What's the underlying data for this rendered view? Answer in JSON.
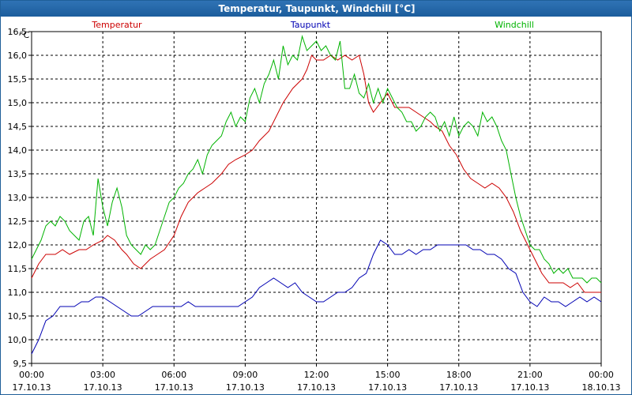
{
  "window": {
    "title": "Temperatur, Taupunkt, Windchill [°C]"
  },
  "chart_data": {
    "type": "line",
    "title": "Temperatur, Taupunkt, Windchill [°C]",
    "ylabel": "°C",
    "ylim": [
      9.5,
      16.5
    ],
    "yticks": [
      "9,5",
      "10,0",
      "10,5",
      "11,0",
      "11,5",
      "12,0",
      "12,5",
      "13,0",
      "13,5",
      "14,0",
      "14,5",
      "15,0",
      "15,5",
      "16,0",
      "16,5"
    ],
    "xlim": [
      0,
      24
    ],
    "xticks": [
      {
        "time": "00:00",
        "date": "17.10.13"
      },
      {
        "time": "03:00",
        "date": "17.10.13"
      },
      {
        "time": "06:00",
        "date": "17.10.13"
      },
      {
        "time": "09:00",
        "date": "17.10.13"
      },
      {
        "time": "12:00",
        "date": "17.10.13"
      },
      {
        "time": "15:00",
        "date": "17.10.13"
      },
      {
        "time": "18:00",
        "date": "17.10.13"
      },
      {
        "time": "21:00",
        "date": "17.10.13"
      },
      {
        "time": "00:00",
        "date": "18.10.13"
      }
    ],
    "grid": true,
    "series": [
      {
        "name": "Temperatur",
        "color": "#cc0000",
        "x": [
          0,
          0.3,
          0.6,
          0.8,
          1,
          1.3,
          1.6,
          2,
          2.3,
          2.6,
          3,
          3.2,
          3.5,
          3.8,
          4,
          4.3,
          4.6,
          5,
          5.3,
          5.6,
          6,
          6.3,
          6.6,
          7,
          7.3,
          7.6,
          8,
          8.3,
          8.6,
          9,
          9.3,
          9.6,
          10,
          10.3,
          10.6,
          11,
          11.2,
          11.4,
          11.6,
          11.8,
          12,
          12.3,
          12.6,
          12.9,
          13.2,
          13.5,
          13.8,
          14,
          14.2,
          14.4,
          14.7,
          15,
          15.3,
          15.6,
          15.9,
          16.2,
          16.5,
          16.8,
          17,
          17.3,
          17.6,
          17.9,
          18.2,
          18.5,
          18.8,
          19.1,
          19.4,
          19.7,
          20,
          20.3,
          20.6,
          20.9,
          21.2,
          21.5,
          21.8,
          22.1,
          22.4,
          22.7,
          23,
          23.3,
          23.6,
          24
        ],
        "values": [
          11.3,
          11.6,
          11.8,
          11.8,
          11.8,
          11.9,
          11.8,
          11.9,
          11.9,
          12.0,
          12.1,
          12.2,
          12.1,
          11.9,
          11.8,
          11.6,
          11.5,
          11.7,
          11.8,
          11.9,
          12.2,
          12.6,
          12.9,
          13.1,
          13.2,
          13.3,
          13.5,
          13.7,
          13.8,
          13.9,
          14.0,
          14.2,
          14.4,
          14.7,
          15.0,
          15.3,
          15.4,
          15.5,
          15.7,
          16.0,
          15.9,
          15.9,
          16.0,
          15.9,
          16.0,
          15.9,
          16.0,
          15.6,
          15.0,
          14.8,
          15.0,
          15.2,
          14.9,
          14.9,
          14.9,
          14.8,
          14.7,
          14.6,
          14.5,
          14.4,
          14.1,
          13.9,
          13.6,
          13.4,
          13.3,
          13.2,
          13.3,
          13.2,
          13.0,
          12.7,
          12.3,
          12.0,
          11.7,
          11.4,
          11.2,
          11.2,
          11.2,
          11.1,
          11.2,
          11.0,
          11.0,
          11.0
        ]
      },
      {
        "name": "Taupunkt",
        "color": "#0000b3",
        "x": [
          0,
          0.3,
          0.6,
          0.9,
          1.2,
          1.5,
          1.8,
          2.1,
          2.4,
          2.7,
          3,
          3.3,
          3.6,
          3.9,
          4.2,
          4.5,
          4.8,
          5.1,
          5.4,
          5.7,
          6,
          6.3,
          6.6,
          6.9,
          7.2,
          7.5,
          7.8,
          8.1,
          8.4,
          8.7,
          9,
          9.3,
          9.6,
          9.9,
          10.2,
          10.5,
          10.8,
          11.1,
          11.4,
          11.7,
          12,
          12.3,
          12.6,
          12.9,
          13.2,
          13.5,
          13.8,
          14.1,
          14.4,
          14.7,
          15,
          15.3,
          15.6,
          15.9,
          16.2,
          16.5,
          16.8,
          17.1,
          17.4,
          17.7,
          18,
          18.3,
          18.6,
          18.9,
          19.2,
          19.5,
          19.8,
          20.1,
          20.4,
          20.7,
          21,
          21.3,
          21.6,
          21.9,
          22.2,
          22.5,
          22.8,
          23.1,
          23.4,
          23.7,
          24
        ],
        "values": [
          9.7,
          10.0,
          10.4,
          10.5,
          10.7,
          10.7,
          10.7,
          10.8,
          10.8,
          10.9,
          10.9,
          10.8,
          10.7,
          10.6,
          10.5,
          10.5,
          10.6,
          10.7,
          10.7,
          10.7,
          10.7,
          10.7,
          10.8,
          10.7,
          10.7,
          10.7,
          10.7,
          10.7,
          10.7,
          10.7,
          10.8,
          10.9,
          11.1,
          11.2,
          11.3,
          11.2,
          11.1,
          11.2,
          11.0,
          10.9,
          10.8,
          10.8,
          10.9,
          11.0,
          11.0,
          11.1,
          11.3,
          11.4,
          11.8,
          12.1,
          12.0,
          11.8,
          11.8,
          11.9,
          11.8,
          11.9,
          11.9,
          12.0,
          12.0,
          12.0,
          12.0,
          12.0,
          11.9,
          11.9,
          11.8,
          11.8,
          11.7,
          11.5,
          11.4,
          11.0,
          10.8,
          10.7,
          10.9,
          10.8,
          10.8,
          10.7,
          10.8,
          10.9,
          10.8,
          10.9,
          10.8
        ]
      },
      {
        "name": "Windchill",
        "color": "#00b300",
        "x": [
          0,
          0.2,
          0.4,
          0.6,
          0.8,
          1,
          1.2,
          1.4,
          1.6,
          1.8,
          2,
          2.2,
          2.4,
          2.6,
          2.8,
          3,
          3.2,
          3.4,
          3.6,
          3.8,
          4,
          4.2,
          4.4,
          4.6,
          4.8,
          5,
          5.2,
          5.4,
          5.6,
          5.8,
          6,
          6.2,
          6.4,
          6.6,
          6.8,
          7,
          7.2,
          7.4,
          7.6,
          7.8,
          8,
          8.2,
          8.4,
          8.6,
          8.8,
          9,
          9.2,
          9.4,
          9.6,
          9.8,
          10,
          10.2,
          10.4,
          10.6,
          10.8,
          11,
          11.2,
          11.4,
          11.6,
          11.8,
          12,
          12.2,
          12.4,
          12.6,
          12.8,
          13,
          13.2,
          13.4,
          13.6,
          13.8,
          14,
          14.2,
          14.4,
          14.6,
          14.8,
          15,
          15.2,
          15.4,
          15.6,
          15.8,
          16,
          16.2,
          16.4,
          16.6,
          16.8,
          17,
          17.2,
          17.4,
          17.6,
          17.8,
          18,
          18.2,
          18.4,
          18.6,
          18.8,
          19,
          19.2,
          19.4,
          19.6,
          19.8,
          20,
          20.2,
          20.4,
          20.6,
          20.8,
          21,
          21.2,
          21.4,
          21.6,
          21.8,
          22,
          22.2,
          22.4,
          22.6,
          22.8,
          23,
          23.2,
          23.4,
          23.6,
          23.8,
          24
        ],
        "values": [
          11.7,
          11.9,
          12.1,
          12.4,
          12.5,
          12.4,
          12.6,
          12.5,
          12.3,
          12.2,
          12.1,
          12.5,
          12.6,
          12.2,
          13.4,
          12.8,
          12.4,
          12.9,
          13.2,
          12.8,
          12.2,
          12.0,
          11.9,
          11.8,
          12.0,
          11.9,
          12.0,
          12.3,
          12.6,
          12.9,
          13.0,
          13.2,
          13.3,
          13.5,
          13.6,
          13.8,
          13.5,
          13.9,
          14.1,
          14.2,
          14.3,
          14.6,
          14.8,
          14.5,
          14.7,
          14.6,
          15.1,
          15.3,
          15.0,
          15.4,
          15.6,
          15.9,
          15.5,
          16.2,
          15.8,
          16.0,
          15.9,
          16.4,
          16.1,
          16.2,
          16.3,
          16.1,
          16.2,
          16.0,
          15.9,
          16.3,
          15.3,
          15.3,
          15.6,
          15.2,
          15.1,
          15.4,
          15.0,
          15.3,
          15.0,
          15.3,
          15.1,
          14.9,
          14.8,
          14.6,
          14.6,
          14.4,
          14.5,
          14.7,
          14.8,
          14.7,
          14.4,
          14.6,
          14.3,
          14.7,
          14.3,
          14.5,
          14.6,
          14.5,
          14.3,
          14.8,
          14.6,
          14.7,
          14.5,
          14.2,
          14.0,
          13.5,
          13.0,
          12.6,
          12.3,
          12.0,
          11.9,
          11.9,
          11.7,
          11.6,
          11.4,
          11.5,
          11.4,
          11.5,
          11.3,
          11.3,
          11.3,
          11.2,
          11.3,
          11.3,
          11.2
        ]
      }
    ]
  }
}
